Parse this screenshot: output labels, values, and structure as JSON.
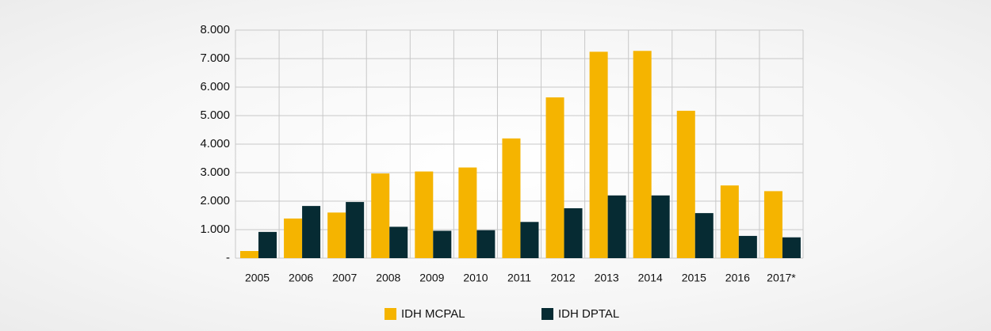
{
  "chart_data": {
    "type": "bar",
    "categories": [
      "2005",
      "2006",
      "2007",
      "2008",
      "2009",
      "2010",
      "2011",
      "2012",
      "2013",
      "2014",
      "2015",
      "2016",
      "2017*"
    ],
    "series": [
      {
        "name": "IDH MCPAL",
        "color": "#f5b400",
        "values": [
          250,
          1390,
          1600,
          2970,
          3040,
          3180,
          4200,
          5640,
          7240,
          7270,
          5170,
          2550,
          2350
        ]
      },
      {
        "name": "IDH DPTAL",
        "color": "#062b33",
        "values": [
          920,
          1830,
          1970,
          1100,
          960,
          980,
          1270,
          1750,
          2200,
          2200,
          1580,
          780,
          730
        ]
      }
    ],
    "ylim": [
      0,
      8000
    ],
    "yticks": [
      {
        "value": 0,
        "label": "-"
      },
      {
        "value": 1000,
        "label": "1.000"
      },
      {
        "value": 2000,
        "label": "2.000"
      },
      {
        "value": 3000,
        "label": "3.000"
      },
      {
        "value": 4000,
        "label": "4.000"
      },
      {
        "value": 5000,
        "label": "5.000"
      },
      {
        "value": 6000,
        "label": "6.000"
      },
      {
        "value": 7000,
        "label": "7.000"
      },
      {
        "value": 8000,
        "label": "8.000"
      }
    ],
    "grid": true,
    "legend": "bottom"
  }
}
